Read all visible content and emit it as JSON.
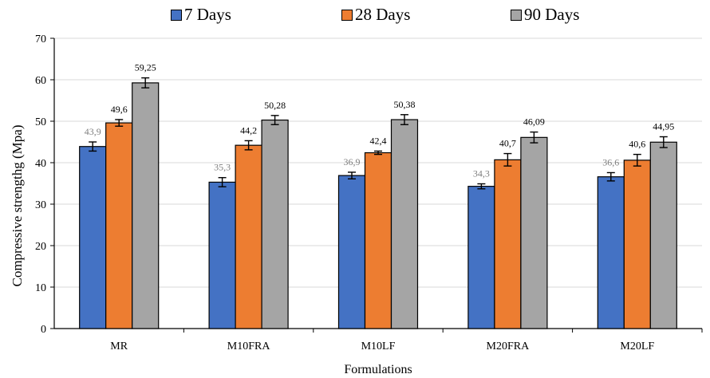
{
  "chart_data": {
    "type": "bar",
    "title": "",
    "xlabel": "Formulations",
    "ylabel": "Compressive strengthg  (Mpa)",
    "ylim": [
      0,
      70
    ],
    "yticks": [
      "0",
      "10",
      "20",
      "30",
      "40",
      "50",
      "60",
      "70"
    ],
    "categories": [
      "MR",
      "M10FRA",
      "M10LF",
      "M20FRA",
      "M20LF"
    ],
    "legend_position": "top",
    "grid": "horizontal",
    "series": [
      {
        "name": "7 Days",
        "color": "#4472c4",
        "values": [
          43.9,
          35.3,
          36.9,
          34.3,
          36.6
        ],
        "labels": [
          "43,9",
          "35,3",
          "36,9",
          "34,3",
          "36,6"
        ],
        "errors": [
          1.1,
          1.1,
          0.8,
          0.6,
          1.0
        ]
      },
      {
        "name": "28 Days",
        "color": "#ed7d31",
        "values": [
          49.6,
          44.2,
          42.4,
          40.7,
          40.6
        ],
        "labels": [
          "49,6",
          "44,2",
          "42,4",
          "40,7",
          "40,6"
        ],
        "errors": [
          0.8,
          1.1,
          0.4,
          1.5,
          1.4
        ]
      },
      {
        "name": "90 Days",
        "color": "#a5a5a5",
        "values": [
          59.25,
          50.28,
          50.38,
          46.09,
          44.95
        ],
        "labels": [
          "59,25",
          "50,28",
          "50,38",
          "46,09",
          "44,95"
        ],
        "errors": [
          1.2,
          1.1,
          1.2,
          1.3,
          1.3
        ]
      }
    ]
  }
}
